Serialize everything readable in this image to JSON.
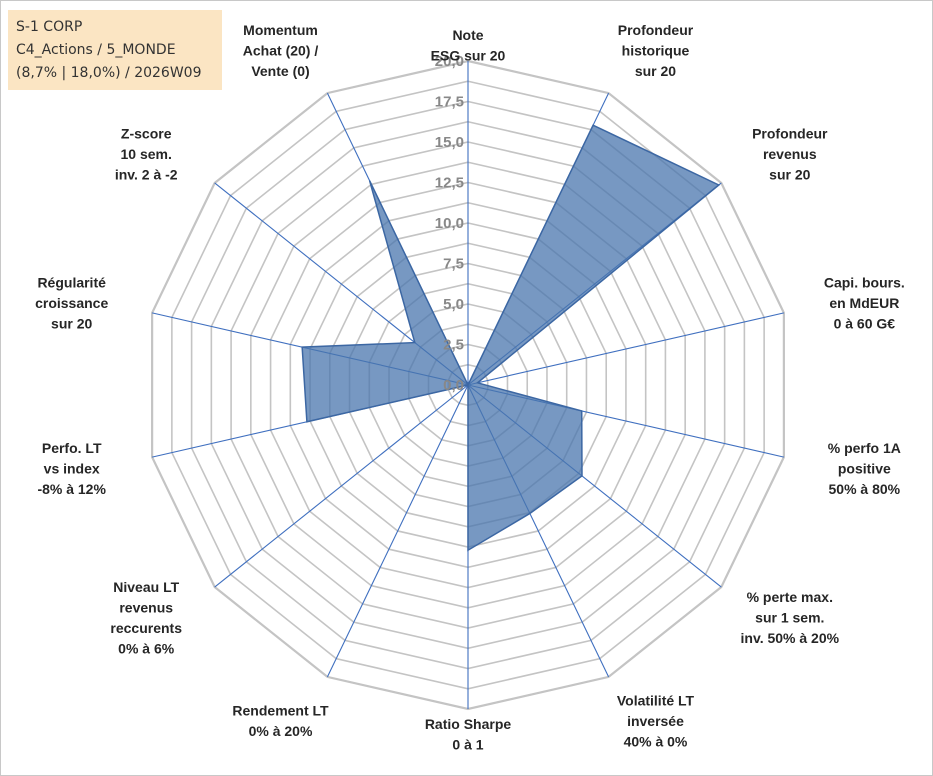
{
  "info_box": {
    "line1": "S-1 CORP",
    "line2": "C4_Actions / 5_MONDE",
    "line3": "(8,7% | 18,0%) / 2026W09",
    "background": "#fbe5c3"
  },
  "chart_data": {
    "type": "radar",
    "title": "",
    "r_range": [
      0,
      20
    ],
    "r_ticks": [
      "0,0",
      "2,5",
      "5,0",
      "7,5",
      "10,0",
      "12,5",
      "15,0",
      "17,5",
      "20,0"
    ],
    "grid": true,
    "axes": [
      {
        "lines": [
          "Note",
          "ESG sur 20"
        ]
      },
      {
        "lines": [
          "Profondeur",
          "historique",
          "sur 20"
        ]
      },
      {
        "lines": [
          "Profondeur",
          "revenus",
          "sur 20"
        ]
      },
      {
        "lines": [
          "Capi. bours.",
          "en MdEUR",
          "0 à 60 G€"
        ]
      },
      {
        "lines": [
          "% perfo 1A",
          "positive",
          "50% à 80%"
        ]
      },
      {
        "lines": [
          "% perte max.",
          "sur 1 sem.",
          "inv. 50% à 20%"
        ]
      },
      {
        "lines": [
          "Volatilité LT",
          "inversée",
          "40% à 0%"
        ]
      },
      {
        "lines": [
          "Ratio Sharpe",
          "0 à 1"
        ]
      },
      {
        "lines": [
          "Rendement LT",
          "0% à 20%"
        ]
      },
      {
        "lines": [
          "Niveau LT",
          "revenus",
          "reccurents",
          "0% à 6%"
        ]
      },
      {
        "lines": [
          "Perfo. LT",
          "vs index",
          "-8% à 12%"
        ]
      },
      {
        "lines": [
          "Régularité",
          "croissance",
          "sur 20"
        ]
      },
      {
        "lines": [
          "Z-score",
          "10 sem.",
          "inv. 2 à -2"
        ]
      },
      {
        "lines": [
          "Momentum",
          "Achat (20) /",
          "Vente (0)"
        ]
      }
    ],
    "series": [
      {
        "values": [
          0.0,
          17.8,
          19.8,
          0.6,
          7.2,
          9.0,
          8.8,
          10.2,
          0.0,
          0.0,
          10.2,
          10.5,
          4.2,
          14.0
        ],
        "fill": "#4a76ad",
        "fill_opacity": 0.75,
        "stroke": "#3c67a3"
      }
    ],
    "grid_color": "#c4c4c4",
    "axis_color": "#3f6fbf"
  }
}
